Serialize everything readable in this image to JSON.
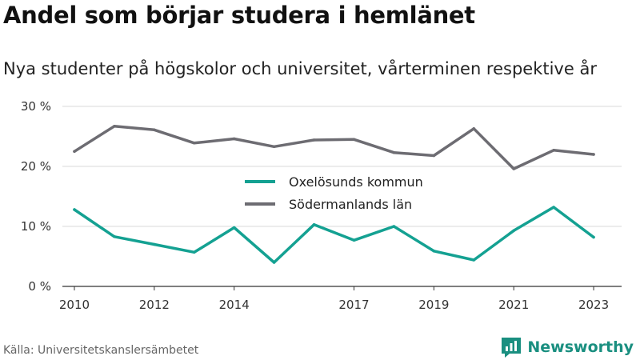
{
  "header": {
    "title": "Andel som börjar studera i hemlänet",
    "subtitle": "Nya studenter på högskolor och universitet, vårterminen respektive år"
  },
  "footer": {
    "source": "Källa: Universitetskanslersämbetet",
    "brand_name": "Newsworthy",
    "brand_icon": "newsworthy-logo-icon"
  },
  "chart_data": {
    "type": "line",
    "x": [
      2010,
      2011,
      2012,
      2013,
      2014,
      2015,
      2016,
      2017,
      2018,
      2019,
      2020,
      2021,
      2022,
      2023
    ],
    "x_tick_values": [
      2010,
      2012,
      2014,
      2017,
      2019,
      2021,
      2023
    ],
    "x_tick_labels": [
      "2010",
      "2012",
      "2014",
      "2017",
      "2019",
      "2021",
      "2023"
    ],
    "y_ticks": [
      0,
      10,
      20,
      30
    ],
    "y_tick_labels": [
      "0 %",
      "10 %",
      "20 %",
      "30 %"
    ],
    "ylim": [
      0,
      30
    ],
    "grid": true,
    "legend_position": "center",
    "series": [
      {
        "name": "Oxelösunds kommun",
        "color": "#14a192",
        "values": [
          12.8,
          8.3,
          7.0,
          5.7,
          9.8,
          4.0,
          10.3,
          7.7,
          10.0,
          5.9,
          4.4,
          9.3,
          13.2,
          8.2
        ]
      },
      {
        "name": "Södermanlands län",
        "color": "#6d6c72",
        "values": [
          22.5,
          26.7,
          26.1,
          23.9,
          24.6,
          23.3,
          24.4,
          24.5,
          22.3,
          21.8,
          26.3,
          19.6,
          22.7,
          22.0
        ]
      }
    ]
  }
}
